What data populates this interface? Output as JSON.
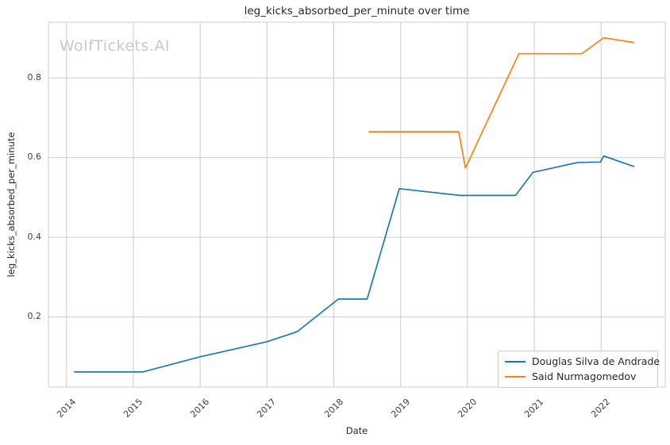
{
  "chart_data": {
    "type": "line",
    "title": "leg_kicks_absorbed_per_minute over time",
    "xlabel": "Date",
    "ylabel": "leg_kicks_absorbed_per_minute",
    "watermark": "WolfTickets.AI",
    "x_ticks": [
      2014,
      2015,
      2016,
      2017,
      2018,
      2019,
      2020,
      2021,
      2022
    ],
    "x_tick_labels": [
      "2014",
      "2015",
      "2016",
      "2017",
      "2018",
      "2019",
      "2020",
      "2021",
      "2022"
    ],
    "y_ticks": [
      0.2,
      0.4,
      0.6,
      0.8
    ],
    "y_tick_labels": [
      "0.2",
      "0.4",
      "0.6",
      "0.8"
    ],
    "xlim": [
      2013.73,
      2022.96
    ],
    "ylim": [
      0.024,
      0.94
    ],
    "grid": true,
    "legend_position": "lower right",
    "series": [
      {
        "name": "Douglas Silva de Andrade",
        "color": "#1f77b4",
        "x": [
          2014.12,
          2015.14,
          2016.0,
          2017.0,
          2017.45,
          2018.07,
          2018.5,
          2018.98,
          2019.89,
          2020.72,
          2020.98,
          2021.65,
          2021.99,
          2022.04,
          2022.49
        ],
        "y": [
          0.062,
          0.062,
          0.1,
          0.138,
          0.163,
          0.245,
          0.245,
          0.522,
          0.505,
          0.505,
          0.563,
          0.588,
          0.589,
          0.604,
          0.578
        ]
      },
      {
        "name": "Said Nurmagomedov",
        "color": "#ff7f0e",
        "x": [
          2018.53,
          2019.87,
          2019.97,
          2020.77,
          2021.71,
          2022.04,
          2022.49
        ],
        "y": [
          0.665,
          0.665,
          0.574,
          0.861,
          0.861,
          0.901,
          0.889
        ]
      }
    ],
    "colors": {
      "grid": "#cccccc",
      "spine": "#cccccc",
      "text": "#262626",
      "tick_text": "#3d3d3d",
      "watermark": "#c9c9c9",
      "background": "#ffffff"
    }
  }
}
